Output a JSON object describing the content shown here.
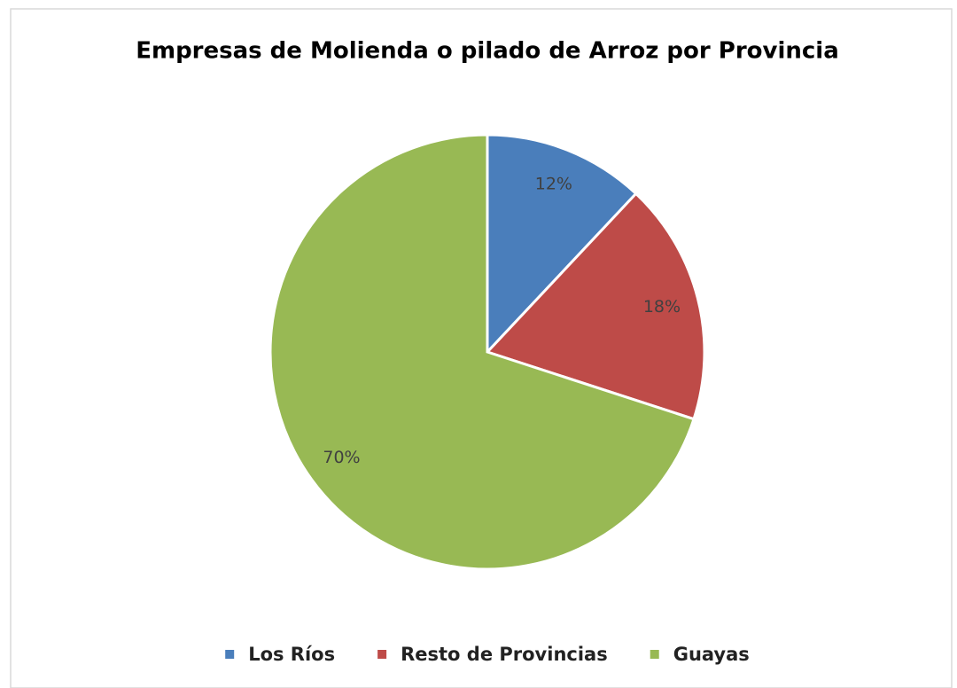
{
  "chart_data": {
    "type": "pie",
    "title": "Empresas de Molienda o pilado de Arroz por Provincia",
    "categories": [
      "Los Ríos",
      "Resto de Provincias",
      "Guayas"
    ],
    "values": [
      12,
      18,
      70
    ],
    "value_labels": [
      "12%",
      "18%",
      "70%"
    ],
    "colors": [
      "#4a7ebb",
      "#be4b48",
      "#98b954"
    ],
    "legend": "bottom"
  }
}
